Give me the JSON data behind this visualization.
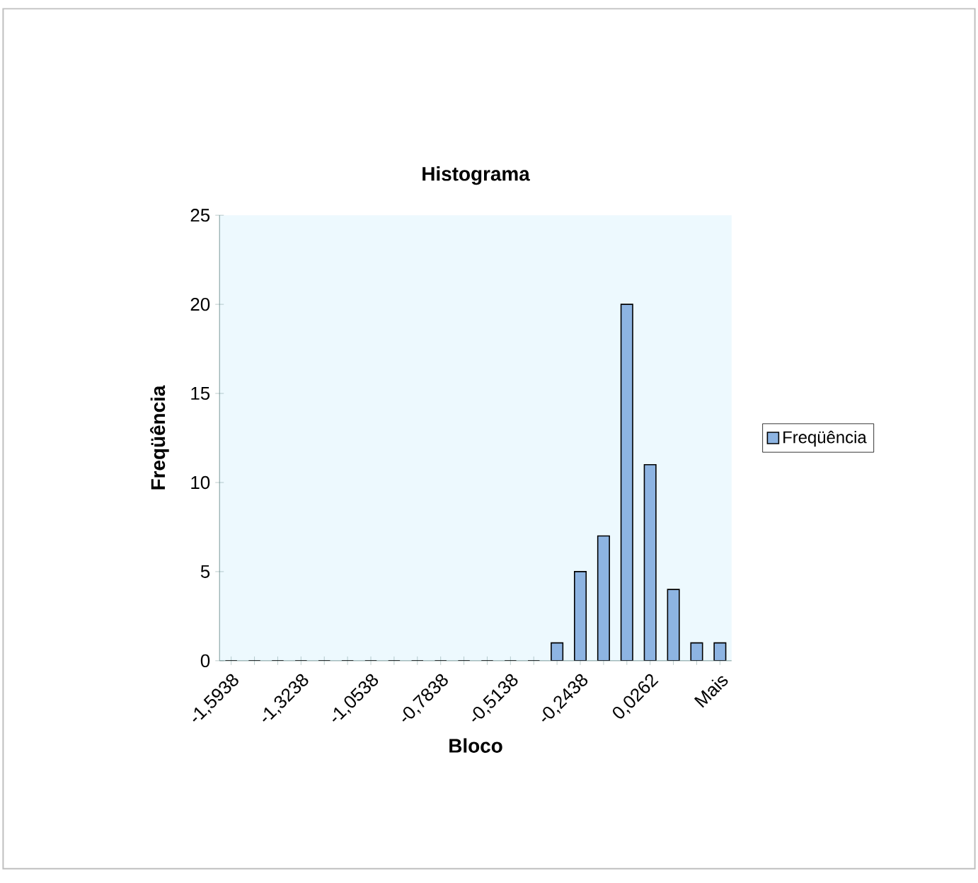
{
  "chart_data": {
    "type": "bar",
    "title": "Histograma",
    "xlabel": "Bloco",
    "ylabel": "Freqüência",
    "categories": [
      "-1,5938",
      null,
      null,
      "-1,3238",
      null,
      null,
      "-1,0538",
      null,
      null,
      "-0,7838",
      null,
      null,
      "-0,5138",
      null,
      null,
      "-0,2438",
      null,
      null,
      "0,0262",
      null,
      null,
      "Mais"
    ],
    "series": [
      {
        "name": "Freqüência",
        "color": "#8db4e2",
        "values": [
          0,
          0,
          0,
          0,
          0,
          0,
          0,
          0,
          0,
          0,
          0,
          0,
          0,
          0,
          1,
          5,
          7,
          20,
          11,
          4,
          1,
          1
        ]
      }
    ],
    "ylim": [
      0,
      25
    ],
    "yticks": [
      0,
      5,
      10,
      15,
      20,
      25
    ],
    "legend": "right",
    "grid": false
  }
}
